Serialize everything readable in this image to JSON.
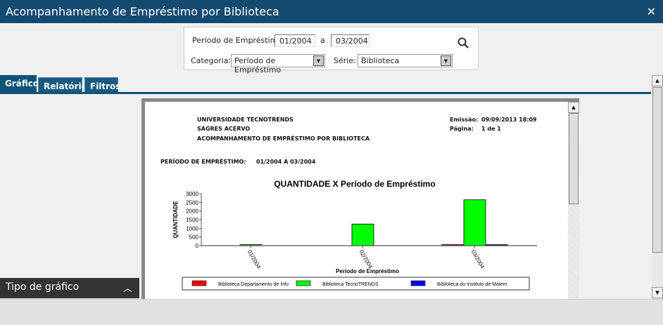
{
  "window": {
    "title": "Acompanhamento de Empréstimo por Biblioteca",
    "close_icon": "close-icon"
  },
  "filters": {
    "periodo_label": "Período de Empréstimo:",
    "periodo_from": "01/2004",
    "a_label": "a",
    "periodo_to": "03/2004",
    "categoria_label": "Categoria:",
    "categoria_value": "Período de Empréstimo",
    "serie_label": "Série:",
    "serie_value": "Biblioteca",
    "search_icon": "search-icon"
  },
  "tabs": [
    {
      "label": "Gráfico",
      "active": true
    },
    {
      "label": "Relatório"
    },
    {
      "label": "Filtros"
    }
  ],
  "report": {
    "institution": "UNIVERSIDADE TECNOTRENDS",
    "system": "SAGRES ACERVO",
    "report_title": "ACOMPANHAMENTO DE EMPRÉSTIMO POR BIBLIOTECA",
    "emissao_label": "Emissão:",
    "emissao_value": "09/09/2013 18:09",
    "pagina_label": "Página:",
    "pagina_value": "1 de 1",
    "periodo_label": "PERÍODO DE EMPRÉSTIMO:",
    "periodo_value": "01/2004 A 03/2004"
  },
  "chart_data": {
    "type": "bar",
    "title": "QUANTIDADE X Período de Empréstimo",
    "xlabel": "Período de Empréstimo",
    "ylabel": "QUANTIDADE",
    "ylim": [
      0,
      3000
    ],
    "yticks": [
      "0",
      "500",
      "1000",
      "1500",
      "2000",
      "2500",
      "3000"
    ],
    "categories": [
      "01/2004",
      "02/2004",
      "03/2004"
    ],
    "legend_position": "bottom",
    "series": [
      {
        "name": "Biblioteca Departamento de Info",
        "color": "#ff0000",
        "values": [
          0,
          0,
          15
        ]
      },
      {
        "name": "Biblioteca TecnoTRENDS",
        "color": "#00ff00",
        "values": [
          15,
          1250,
          2650
        ]
      },
      {
        "name": "Biblioteca do Instituto de Matem",
        "color": "#0000ff",
        "values": [
          0,
          0,
          15
        ]
      }
    ]
  },
  "panel": {
    "tipo_label": "Tipo de gráfico"
  }
}
